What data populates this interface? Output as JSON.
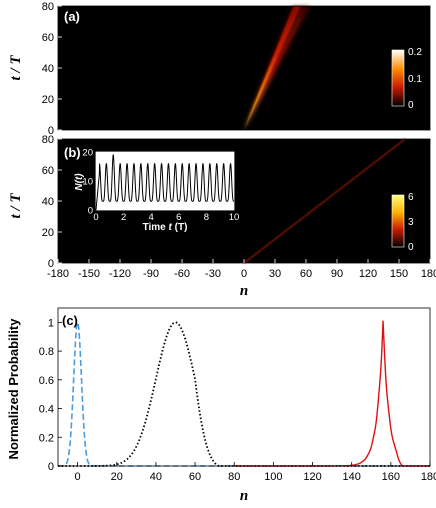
{
  "chart_data": [
    {
      "panel": "(a)",
      "type": "heatmap",
      "xlabel": "n",
      "ylabel": "t / T",
      "xlim": [
        -180,
        180
      ],
      "ylim": [
        0,
        80
      ],
      "yticks": [
        0,
        20,
        40,
        60,
        80
      ],
      "colorbar": {
        "ticks": [
          "0.2",
          "0.1",
          "0"
        ],
        "range": [
          0,
          0.2
        ]
      },
      "beam": {
        "type": "single",
        "start_n": 0,
        "end_n": 50,
        "end_t": 80
      }
    },
    {
      "panel": "(b)",
      "type": "heatmap",
      "xlabel": "n",
      "ylabel": "t / T",
      "xlim": [
        -180,
        180
      ],
      "ylim": [
        0,
        80
      ],
      "xticks": [
        -180,
        -150,
        -120,
        -90,
        -60,
        -30,
        0,
        30,
        60,
        90,
        120,
        150,
        180
      ],
      "yticks": [
        0,
        20,
        40,
        60,
        80
      ],
      "colorbar": {
        "ticks": [
          "6",
          "3",
          "0"
        ],
        "range": [
          0,
          6
        ]
      },
      "beam": {
        "type": "single",
        "start_n": 0,
        "end_n": 156,
        "end_t": 80
      },
      "inset": {
        "type": "line",
        "xlabel": "Time t (T)",
        "ylabel": "N(t)",
        "xlim": [
          0,
          10
        ],
        "ylim": [
          0,
          20
        ],
        "xticks": [
          0,
          2,
          4,
          6,
          8,
          10
        ],
        "yticks": [
          0,
          10,
          20
        ],
        "period": 0.5,
        "min_value": 3,
        "max_value": 16,
        "first_peak": 19
      }
    },
    {
      "panel": "(c)",
      "type": "line",
      "xlabel": "n",
      "ylabel": "Normalized Probability",
      "xlim": [
        -10,
        180
      ],
      "ylim": [
        0,
        1.1
      ],
      "xticks": [
        0,
        20,
        40,
        60,
        80,
        100,
        120,
        140,
        160,
        180
      ],
      "yticks": [
        0,
        0.2,
        0.4,
        0.6,
        0.8,
        1
      ],
      "series": [
        {
          "style": "dashed",
          "color": "#4a9de0",
          "center": 0,
          "sigma": 2
        },
        {
          "style": "dotted",
          "color": "#000000",
          "center": 50,
          "sigma": 10,
          "cutoff": 72
        },
        {
          "style": "solid",
          "color": "#e01010",
          "center": 156,
          "width": 3
        }
      ]
    }
  ]
}
